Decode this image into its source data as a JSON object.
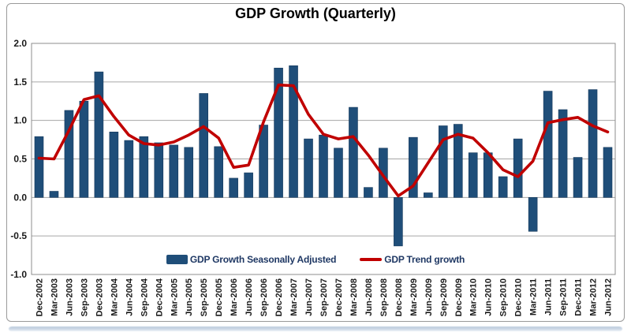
{
  "chart": {
    "title": "GDP Growth (Quarterly)",
    "legend": [
      {
        "label": "GDP Growth Seasonally Adjusted",
        "swatch": "bar-swatch"
      },
      {
        "label": "GDP Trend growth",
        "swatch": "line-swatch"
      }
    ]
  },
  "colors": {
    "bar": "#1F4E79",
    "bar_edge": "#16395C",
    "line": "#C00000",
    "grid": "#A6A6A6",
    "plot_border": "#8C8C8C",
    "axis_text": "#1A1A1A",
    "legend_text": "#1F3864",
    "title_text": "#000000"
  },
  "chart_data": {
    "type": "bar",
    "title": "GDP Growth (Quarterly)",
    "xlabel": "",
    "ylabel": "",
    "ylim": [
      -1.0,
      2.0
    ],
    "y_ticks": [
      2.0,
      1.5,
      1.0,
      0.5,
      0.0,
      -0.5,
      -1.0
    ],
    "grid": true,
    "legend_position": "bottom-center",
    "categories": [
      "Dec-2002",
      "Mar-2003",
      "Jun-2003",
      "Sep-2003",
      "Dec-2003",
      "Mar-2004",
      "Jun-2004",
      "Sep-2004",
      "Dec-2004",
      "Mar-2005",
      "Jun-2005",
      "Sep-2005",
      "Dec-2005",
      "Mar-2006",
      "Jun-2006",
      "Sep-2006",
      "Dec-2006",
      "Mar-2007",
      "Jun-2007",
      "Sep-2007",
      "Dec-2007",
      "Mar-2008",
      "Jun-2008",
      "Sep-2008",
      "Dec-2008",
      "Mar-2009",
      "Jun-2009",
      "Sep-2009",
      "Dec-2009",
      "Mar-2010",
      "Jun-2010",
      "Sep-2010",
      "Dec-2010",
      "Mar-2011",
      "Jun-2011",
      "Sep-2011",
      "Dec-2011",
      "Mar-2012",
      "Jun-2012"
    ],
    "series": [
      {
        "name": "GDP Growth Seasonally Adjusted",
        "type": "bar",
        "color": "#1F4E79",
        "values": [
          0.79,
          0.08,
          1.13,
          1.25,
          1.63,
          0.85,
          0.74,
          0.79,
          0.71,
          0.68,
          0.65,
          1.35,
          0.66,
          0.25,
          0.32,
          0.94,
          1.68,
          1.71,
          0.76,
          0.81,
          0.64,
          1.17,
          0.13,
          0.64,
          -0.63,
          0.78,
          0.06,
          0.93,
          0.95,
          0.58,
          0.58,
          0.27,
          0.76,
          -0.44,
          1.38,
          1.14,
          0.52,
          1.4,
          0.65
        ]
      },
      {
        "name": "GDP Trend growth",
        "type": "line",
        "color": "#C00000",
        "values": [
          0.51,
          0.5,
          0.87,
          1.27,
          1.32,
          1.05,
          0.81,
          0.7,
          0.68,
          0.72,
          0.81,
          0.92,
          0.77,
          0.39,
          0.42,
          0.98,
          1.46,
          1.45,
          1.08,
          0.82,
          0.76,
          0.79,
          0.55,
          0.28,
          0.02,
          0.15,
          0.45,
          0.75,
          0.82,
          0.77,
          0.58,
          0.36,
          0.27,
          0.47,
          0.97,
          1.01,
          1.04,
          0.93,
          0.85
        ]
      }
    ]
  }
}
